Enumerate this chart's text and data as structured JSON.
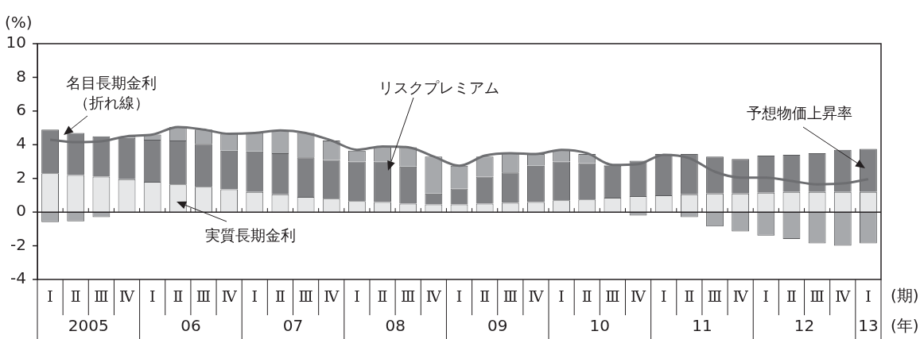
{
  "chart_data": {
    "type": "bar",
    "stacked": true,
    "ylabel": "(%)",
    "xlabel": "(期)",
    "categories": [
      "Ⅰ",
      "Ⅱ",
      "Ⅲ",
      "Ⅳ",
      "Ⅰ",
      "Ⅱ",
      "Ⅲ",
      "Ⅳ",
      "Ⅰ",
      "Ⅱ",
      "Ⅲ",
      "Ⅳ",
      "Ⅰ",
      "Ⅱ",
      "Ⅲ",
      "Ⅳ",
      "Ⅰ",
      "Ⅱ",
      "Ⅲ",
      "Ⅳ",
      "Ⅰ",
      "Ⅱ",
      "Ⅲ",
      "Ⅳ",
      "Ⅰ",
      "Ⅱ",
      "Ⅲ",
      "Ⅳ",
      "Ⅰ",
      "Ⅱ",
      "Ⅲ",
      "Ⅳ",
      "Ⅰ"
    ],
    "series": [
      {
        "name": "実質長期金利",
        "color": "#e6e7e8",
        "values": [
          2.3,
          2.2,
          2.1,
          1.95,
          1.8,
          1.65,
          1.5,
          1.35,
          1.2,
          1.05,
          0.9,
          0.8,
          0.65,
          0.6,
          0.5,
          0.45,
          0.45,
          0.5,
          0.55,
          0.6,
          0.7,
          0.75,
          0.85,
          0.95,
          1.0,
          1.05,
          1.1,
          1.1,
          1.15,
          1.2,
          1.2,
          1.2,
          1.2
        ]
      },
      {
        "name": "予想物価上昇率",
        "color": "#808184",
        "values": [
          2.6,
          2.5,
          2.4,
          2.45,
          2.5,
          2.6,
          2.55,
          2.3,
          2.4,
          2.45,
          2.35,
          2.3,
          2.35,
          2.4,
          2.2,
          0.65,
          0.95,
          1.6,
          1.8,
          2.15,
          2.3,
          2.15,
          1.9,
          2.1,
          2.45,
          2.4,
          2.2,
          2.05,
          2.2,
          2.2,
          2.3,
          2.5,
          2.55
        ]
      },
      {
        "name": "リスクプレミアム",
        "color": "#a7a9ac",
        "values": [
          -0.6,
          -0.55,
          -0.3,
          0.1,
          0.3,
          0.8,
          0.85,
          1.0,
          1.1,
          1.35,
          1.45,
          1.15,
          0.65,
          0.85,
          1.15,
          2.2,
          1.35,
          1.2,
          1.15,
          0.7,
          0.7,
          0.55,
          0.05,
          -0.2,
          0,
          -0.3,
          -0.85,
          -1.15,
          -1.4,
          -1.6,
          -1.85,
          -2.0,
          -1.85
        ]
      },
      {
        "name": "名目長期金利（折れ線）",
        "type": "line",
        "color": "#6d6e71",
        "marker": "none",
        "values": [
          4.3,
          4.15,
          4.2,
          4.5,
          4.6,
          5.05,
          4.9,
          4.65,
          4.7,
          4.85,
          4.7,
          4.25,
          3.7,
          3.9,
          3.85,
          3.3,
          2.75,
          3.35,
          3.5,
          3.45,
          3.7,
          3.5,
          2.8,
          2.85,
          3.4,
          3.2,
          2.4,
          2.05,
          2.05,
          1.85,
          1.65,
          1.7,
          1.95
        ]
      }
    ],
    "ref_lines": [
      {
        "axis": "y",
        "value": 0,
        "color": "#231f20"
      }
    ],
    "ylim": [
      -4,
      10
    ],
    "yticks": [
      -4,
      -2,
      0,
      2,
      4,
      6,
      8,
      10
    ],
    "grid": false,
    "legend": false,
    "annotations": [
      "2005",
      "06",
      "07",
      "08",
      "09",
      "10",
      "11",
      "12",
      "13",
      "(年)"
    ]
  }
}
